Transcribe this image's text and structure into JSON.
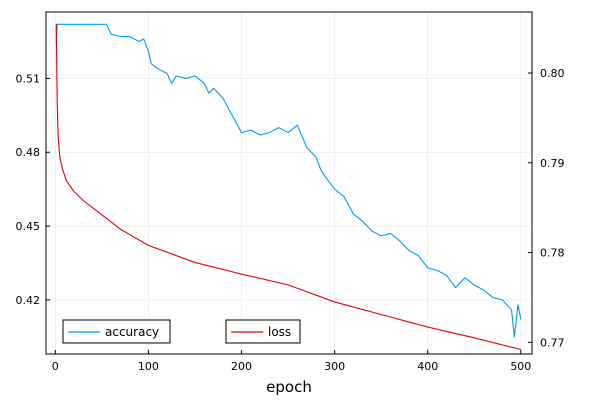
{
  "chart_data": {
    "type": "line",
    "xlabel": "epoch",
    "x_ticks": [
      0,
      100,
      200,
      300,
      400,
      500
    ],
    "xlim": [
      -10,
      512
    ],
    "left_axis": {
      "ticks": [
        0.42,
        0.45,
        0.48,
        0.51
      ],
      "ylim": [
        0.398,
        0.537
      ]
    },
    "right_axis": {
      "ticks": [
        0.77,
        0.78,
        0.79,
        0.8
      ],
      "ylim": [
        0.7687,
        0.8068
      ]
    },
    "grid": true,
    "series": [
      {
        "name": "accuracy",
        "axis": "left",
        "color": "#009af9",
        "x": [
          1,
          2,
          5,
          10,
          20,
          30,
          40,
          50,
          55,
          60,
          70,
          80,
          90,
          95,
          100,
          103,
          110,
          120,
          125,
          130,
          140,
          150,
          160,
          165,
          170,
          180,
          190,
          200,
          210,
          220,
          230,
          240,
          250,
          260,
          270,
          280,
          285,
          290,
          300,
          310,
          320,
          330,
          340,
          350,
          360,
          370,
          380,
          390,
          400,
          410,
          420,
          430,
          440,
          450,
          460,
          470,
          480,
          490,
          493,
          497,
          500
        ],
        "y": [
          0.525,
          0.532,
          0.532,
          0.532,
          0.532,
          0.532,
          0.532,
          0.532,
          0.532,
          0.528,
          0.527,
          0.527,
          0.525,
          0.526,
          0.521,
          0.516,
          0.514,
          0.512,
          0.508,
          0.511,
          0.51,
          0.511,
          0.508,
          0.504,
          0.506,
          0.502,
          0.495,
          0.488,
          0.489,
          0.487,
          0.488,
          0.49,
          0.488,
          0.491,
          0.482,
          0.478,
          0.473,
          0.47,
          0.465,
          0.462,
          0.455,
          0.452,
          0.448,
          0.446,
          0.447,
          0.444,
          0.44,
          0.438,
          0.433,
          0.432,
          0.43,
          0.425,
          0.429,
          0.426,
          0.424,
          0.421,
          0.42,
          0.416,
          0.405,
          0.418,
          0.412
        ]
      },
      {
        "name": "loss",
        "axis": "right",
        "color": "#e3000a",
        "x": [
          1,
          2,
          3,
          5,
          8,
          12,
          20,
          30,
          50,
          70,
          100,
          150,
          200,
          250,
          300,
          350,
          400,
          450,
          500
        ],
        "y": [
          0.8055,
          0.797,
          0.793,
          0.7905,
          0.7892,
          0.788,
          0.7868,
          0.7858,
          0.7842,
          0.7826,
          0.7808,
          0.7789,
          0.7776,
          0.7764,
          0.7745,
          0.7731,
          0.7717,
          0.7705,
          0.7692
        ]
      }
    ]
  }
}
